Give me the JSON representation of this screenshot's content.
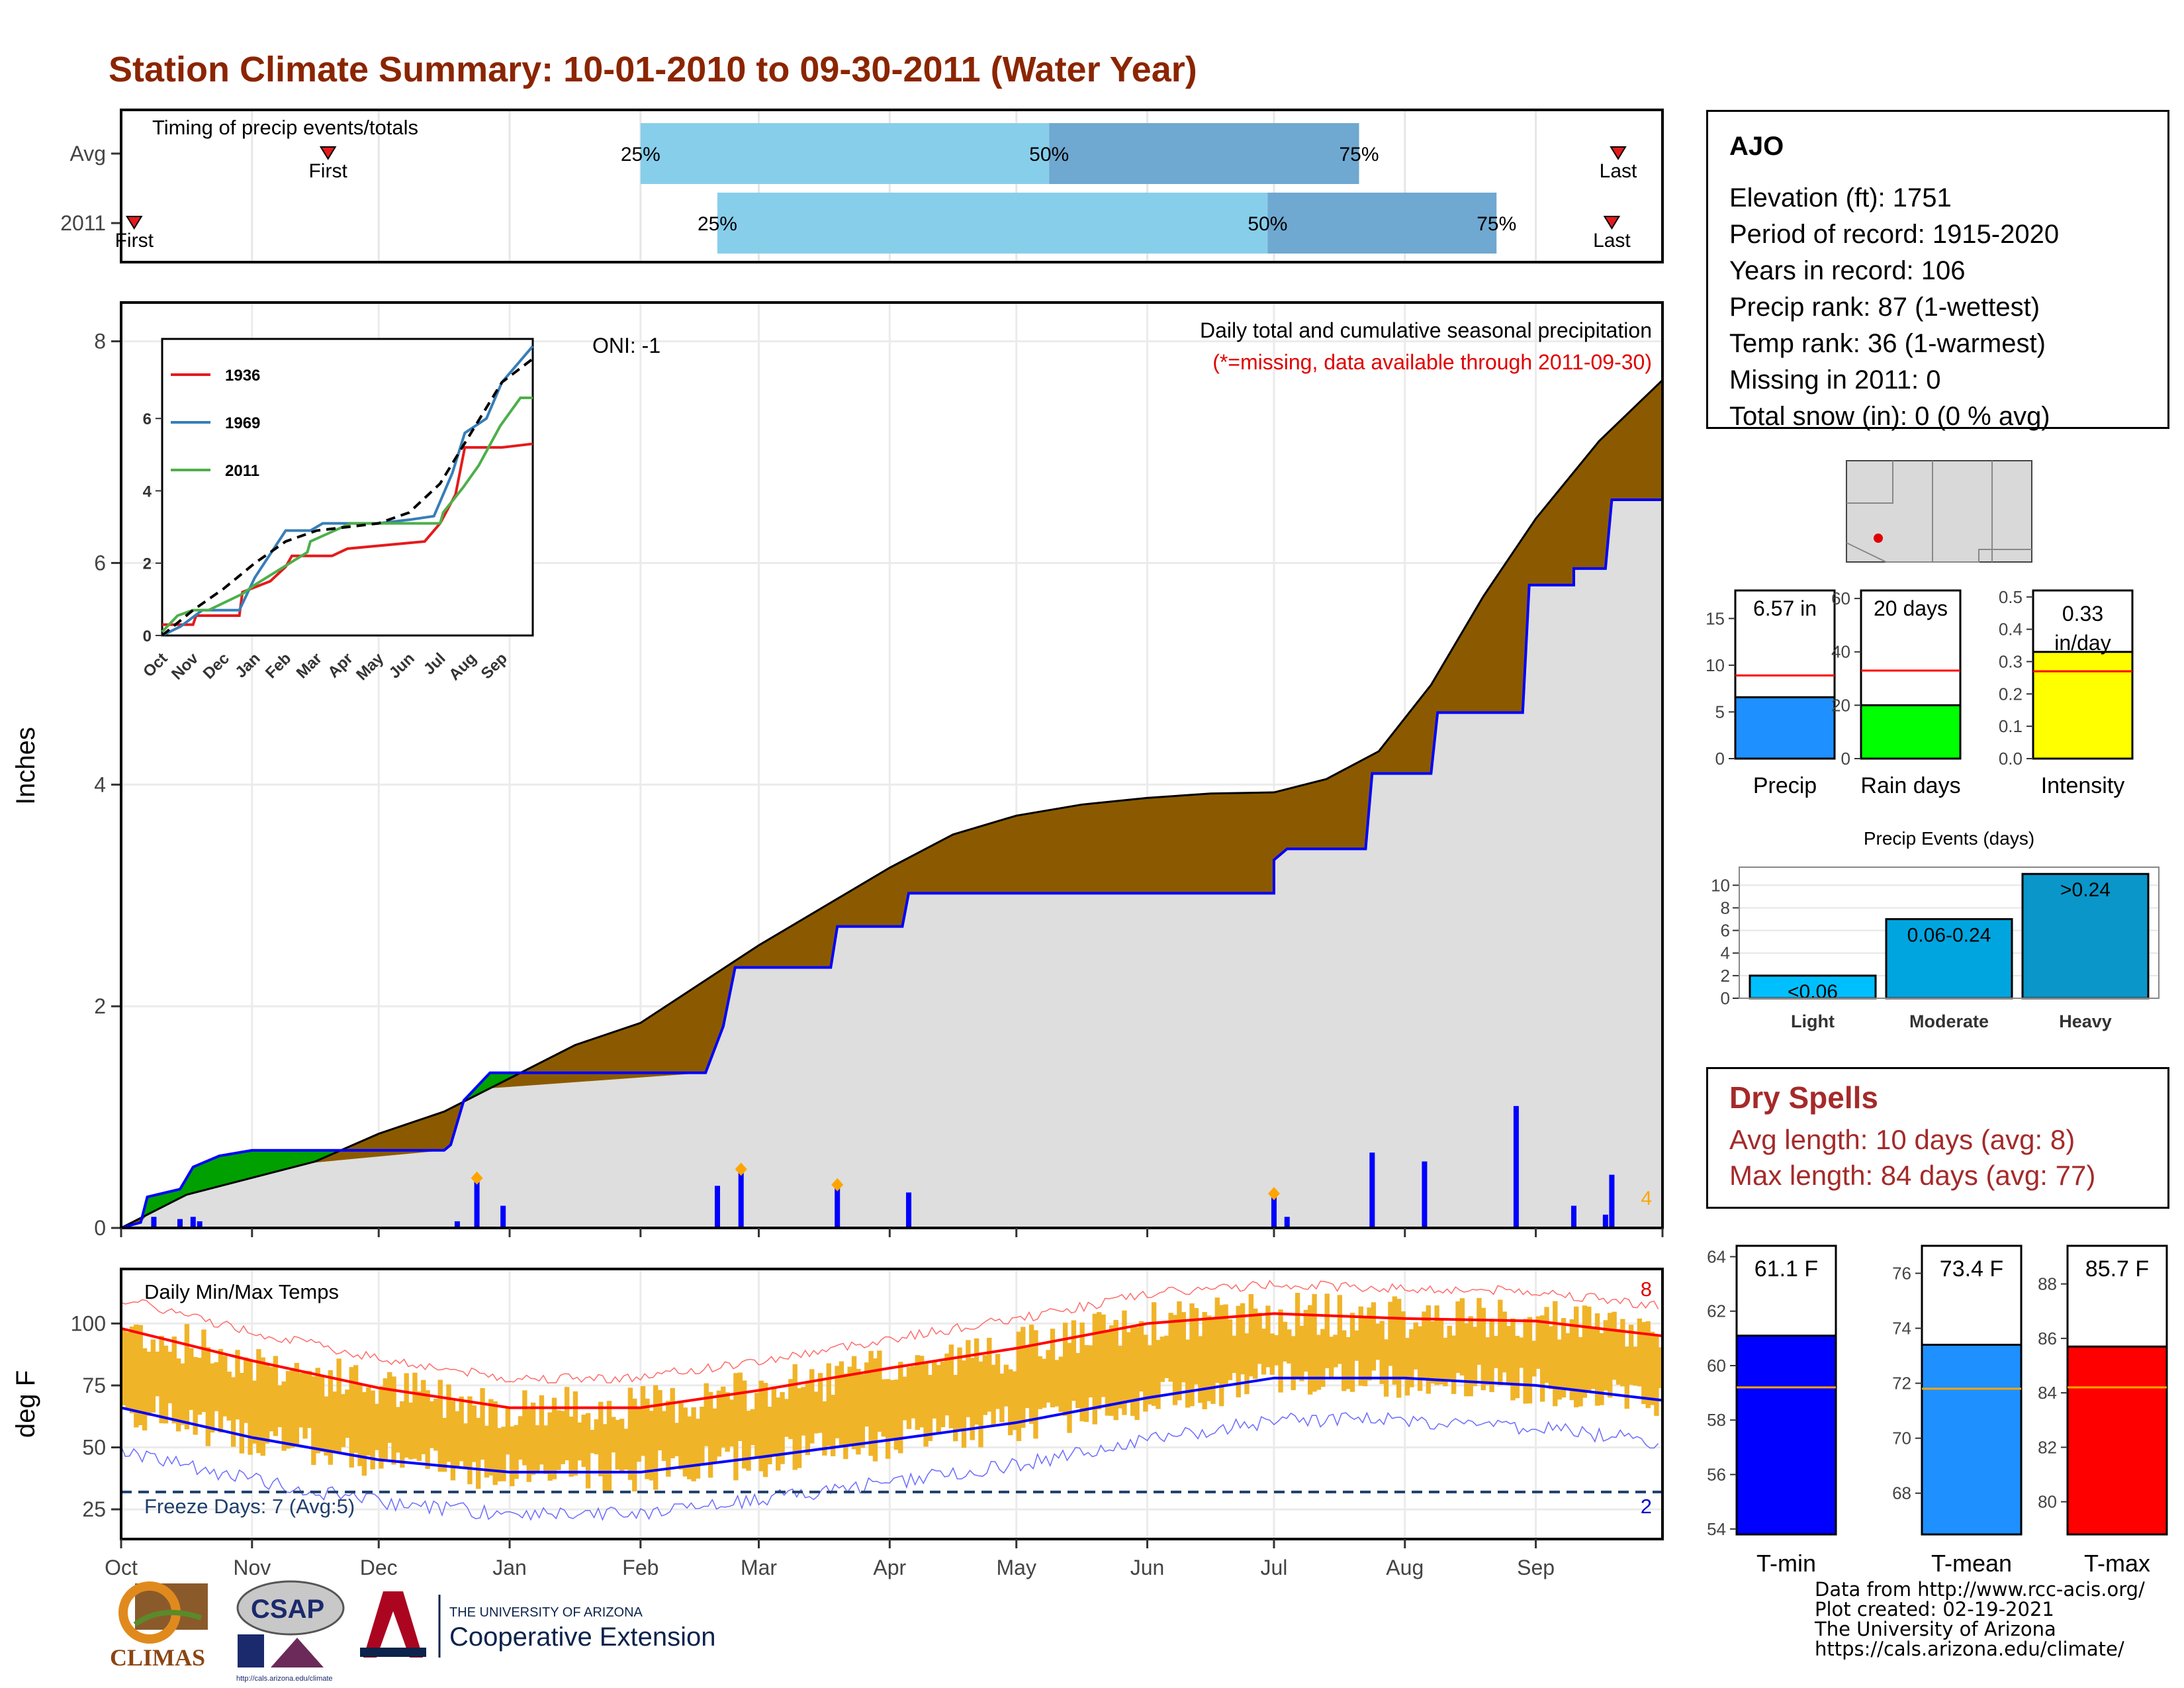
{
  "title": "Station Climate Summary: 10-01-2010 to 09-30-2011 (Water Year)",
  "timing": {
    "label": "Timing of precip events/totals",
    "rows": [
      {
        "label": "Avg",
        "first": "First",
        "last": "Last",
        "p25": "25%",
        "p50": "50%",
        "p75": "75%",
        "first_month": 1.6,
        "last_month": 11.65,
        "p25_month": 4.0,
        "p50_month": 7.25,
        "p75_month": 9.65
      },
      {
        "label": "2011",
        "first": "First",
        "last": "Last",
        "p25": "25%",
        "p50": "50%",
        "p75": "75%",
        "first_month": 0.1,
        "last_month": 11.6,
        "p25_month": 4.65,
        "p50_month": 8.95,
        "p75_month": 10.7
      }
    ]
  },
  "precip": {
    "ylabel": "Inches",
    "yticks": [
      "0",
      "2",
      "4",
      "6",
      "8"
    ],
    "oni": "ONI: -1",
    "caption": "Daily total and cumulative seasonal precipitation",
    "missing_note": "(*=missing, data available through 2011-09-30)",
    "count_label": "4",
    "avg_cumulative": [
      [
        0,
        0
      ],
      [
        0.5,
        0.3
      ],
      [
        1.5,
        0.6
      ],
      [
        2.0,
        0.85
      ],
      [
        2.5,
        1.05
      ],
      [
        3.0,
        1.35
      ],
      [
        3.5,
        1.65
      ],
      [
        4.0,
        1.85
      ],
      [
        4.5,
        2.2
      ],
      [
        5.0,
        2.55
      ],
      [
        5.5,
        2.9
      ],
      [
        6.0,
        3.25
      ],
      [
        6.5,
        3.55
      ],
      [
        7.0,
        3.72
      ],
      [
        7.5,
        3.82
      ],
      [
        8.0,
        3.88
      ],
      [
        8.5,
        3.92
      ],
      [
        9.0,
        3.93
      ],
      [
        9.4,
        4.05
      ],
      [
        9.8,
        4.3
      ],
      [
        10.2,
        4.9
      ],
      [
        10.6,
        5.7
      ],
      [
        11.0,
        6.4
      ],
      [
        11.5,
        7.1
      ],
      [
        12.0,
        7.65
      ]
    ],
    "year_cumulative": [
      [
        0,
        0
      ],
      [
        0.15,
        0.05
      ],
      [
        0.2,
        0.28
      ],
      [
        0.45,
        0.35
      ],
      [
        0.55,
        0.55
      ],
      [
        0.75,
        0.65
      ],
      [
        1.0,
        0.7
      ],
      [
        1.45,
        0.7
      ],
      [
        2.5,
        0.7
      ],
      [
        2.55,
        0.75
      ],
      [
        2.65,
        1.15
      ],
      [
        2.85,
        1.4
      ],
      [
        4.55,
        1.4
      ],
      [
        4.7,
        1.82
      ],
      [
        4.8,
        2.35
      ],
      [
        5.55,
        2.35
      ],
      [
        5.6,
        2.72
      ],
      [
        6.1,
        2.72
      ],
      [
        6.15,
        3.02
      ],
      [
        9.0,
        3.02
      ],
      [
        9.0,
        3.32
      ],
      [
        9.1,
        3.42
      ],
      [
        9.7,
        3.42
      ],
      [
        9.75,
        4.1
      ],
      [
        10.2,
        4.1
      ],
      [
        10.25,
        4.65
      ],
      [
        10.9,
        4.65
      ],
      [
        10.95,
        5.8
      ],
      [
        11.3,
        5.8
      ],
      [
        11.3,
        5.95
      ],
      [
        11.55,
        5.95
      ],
      [
        11.6,
        6.57
      ],
      [
        12.0,
        6.57
      ]
    ],
    "daily_bars": [
      [
        0.25,
        0.1
      ],
      [
        0.45,
        0.08
      ],
      [
        0.55,
        0.1
      ],
      [
        0.6,
        0.06
      ],
      [
        2.6,
        0.06
      ],
      [
        2.75,
        0.42
      ],
      [
        2.95,
        0.2
      ],
      [
        4.65,
        0.38
      ],
      [
        4.85,
        0.5
      ],
      [
        5.6,
        0.36
      ],
      [
        6.15,
        0.32
      ],
      [
        9.0,
        0.3
      ],
      [
        9.1,
        0.1
      ],
      [
        9.75,
        0.68
      ],
      [
        10.15,
        0.6
      ],
      [
        10.85,
        1.1
      ],
      [
        11.3,
        0.2
      ],
      [
        11.55,
        0.12
      ],
      [
        11.6,
        0.48
      ]
    ],
    "extreme_markers": [
      [
        2.75,
        0.45
      ],
      [
        4.85,
        0.53
      ],
      [
        5.6,
        0.39
      ],
      [
        9.0,
        0.31
      ]
    ]
  },
  "inset": {
    "legend": [
      "1936",
      "1969",
      "2011"
    ],
    "months": [
      "Oct",
      "Nov",
      "Dec",
      "Jan",
      "Feb",
      "Mar",
      "Apr",
      "May",
      "Jun",
      "Jul",
      "Aug",
      "Sep"
    ],
    "yticks": [
      "0",
      "2",
      "4",
      "6"
    ],
    "series_1936": [
      [
        0,
        0.3
      ],
      [
        1.0,
        0.3
      ],
      [
        1.1,
        0.55
      ],
      [
        2.5,
        0.55
      ],
      [
        2.6,
        1.2
      ],
      [
        3.5,
        1.5
      ],
      [
        4.0,
        1.9
      ],
      [
        4.2,
        2.2
      ],
      [
        5.5,
        2.2
      ],
      [
        6.0,
        2.4
      ],
      [
        8.5,
        2.6
      ],
      [
        9.0,
        3.1
      ],
      [
        9.5,
        3.9
      ],
      [
        9.8,
        5.2
      ],
      [
        11.0,
        5.2
      ],
      [
        12.0,
        5.3
      ]
    ],
    "series_1969": [
      [
        0,
        0.0
      ],
      [
        0.6,
        0.25
      ],
      [
        1.3,
        0.7
      ],
      [
        2.5,
        0.7
      ],
      [
        3.0,
        1.6
      ],
      [
        4.0,
        2.9
      ],
      [
        4.8,
        2.9
      ],
      [
        5.2,
        3.1
      ],
      [
        7.0,
        3.1
      ],
      [
        8.0,
        3.2
      ],
      [
        8.8,
        3.3
      ],
      [
        9.4,
        4.5
      ],
      [
        9.8,
        5.6
      ],
      [
        10.5,
        6.0
      ],
      [
        11.0,
        7.0
      ],
      [
        12.0,
        8.0
      ]
    ],
    "series_2011": [
      [
        0,
        0.1
      ],
      [
        0.5,
        0.55
      ],
      [
        1.0,
        0.7
      ],
      [
        1.5,
        0.7
      ],
      [
        2.6,
        1.15
      ],
      [
        3.0,
        1.4
      ],
      [
        4.7,
        2.3
      ],
      [
        4.8,
        2.6
      ],
      [
        6.1,
        3.1
      ],
      [
        9.0,
        3.1
      ],
      [
        9.1,
        3.4
      ],
      [
        9.75,
        4.1
      ],
      [
        10.25,
        4.7
      ],
      [
        10.95,
        5.8
      ],
      [
        11.6,
        6.57
      ],
      [
        12.0,
        6.57
      ]
    ],
    "series_avg": [
      [
        0,
        0
      ],
      [
        1.0,
        0.7
      ],
      [
        2.0,
        1.3
      ],
      [
        3.0,
        2.0
      ],
      [
        4.0,
        2.6
      ],
      [
        5.0,
        2.9
      ],
      [
        6.0,
        3.0
      ],
      [
        7.0,
        3.1
      ],
      [
        8.0,
        3.4
      ],
      [
        9.0,
        4.2
      ],
      [
        10.0,
        5.6
      ],
      [
        11.0,
        7.0
      ],
      [
        12.0,
        7.65
      ]
    ]
  },
  "temps": {
    "ylabel": "deg F",
    "label": "Daily Min/Max Temps",
    "freeze_label": "Freeze Days: 7 (Avg:5)",
    "yticks": [
      "25",
      "50",
      "75",
      "100"
    ],
    "hot_count": "8",
    "freeze_count": "2",
    "normal_max": [
      [
        0,
        98
      ],
      [
        1,
        85
      ],
      [
        2,
        74
      ],
      [
        3,
        66
      ],
      [
        4,
        66
      ],
      [
        5,
        73
      ],
      [
        6,
        82
      ],
      [
        7,
        90
      ],
      [
        8,
        100
      ],
      [
        9,
        104
      ],
      [
        10,
        102
      ],
      [
        11,
        101
      ],
      [
        12,
        95
      ]
    ],
    "normal_min": [
      [
        0,
        66
      ],
      [
        1,
        54
      ],
      [
        2,
        45
      ],
      [
        3,
        40
      ],
      [
        4,
        40
      ],
      [
        5,
        46
      ],
      [
        6,
        53
      ],
      [
        7,
        60
      ],
      [
        8,
        70
      ],
      [
        9,
        78
      ],
      [
        10,
        78
      ],
      [
        11,
        75
      ],
      [
        12,
        69
      ]
    ]
  },
  "months": [
    "Oct",
    "Nov",
    "Dec",
    "Jan",
    "Feb",
    "Mar",
    "Apr",
    "May",
    "Jun",
    "Jul",
    "Aug",
    "Sep"
  ],
  "station": {
    "name": "AJO",
    "elevation": "Elevation (ft): 1751",
    "period": "Period of record: 1915-2020",
    "years": "Years in record: 106",
    "precip_rank": "Precip rank: 87 (1-wettest)",
    "temp_rank": "Temp rank: 36 (1-warmest)",
    "missing": "Missing in 2011: 0",
    "snow": "Total snow (in): 0 (0 % avg)"
  },
  "precip_bars": [
    {
      "value_label": "6.57 in",
      "label": "Precip",
      "value": 6.57,
      "avg": 8.9,
      "ymax": 18,
      "yticks": [
        "0",
        "5",
        "10",
        "15"
      ],
      "tickvals": [
        0,
        5,
        10,
        15
      ],
      "color": "#1e90ff"
    },
    {
      "value_label": "20 days",
      "label": "Rain days",
      "value": 20,
      "avg": 33,
      "ymax": 63,
      "yticks": [
        "0",
        "20",
        "40",
        "60"
      ],
      "tickvals": [
        0,
        20,
        40,
        60
      ],
      "color": "#00ff00"
    },
    {
      "value_label": "0.33 in/day",
      "label": "Intensity",
      "value": 0.33,
      "avg": 0.27,
      "ymax": 0.52,
      "yticks": [
        "0.0",
        "0.1",
        "0.2",
        "0.3",
        "0.4",
        "0.5"
      ],
      "tickvals": [
        0,
        0.1,
        0.2,
        0.3,
        0.4,
        0.5
      ],
      "color": "#ffff00"
    }
  ],
  "events": {
    "title": "Precip Events (days)",
    "categories": [
      "Light",
      "Moderate",
      "Heavy"
    ],
    "bar_labels": [
      "<0.06",
      "0.06-0.24",
      ">0.24"
    ],
    "values": [
      2,
      7,
      11
    ],
    "yticks": [
      "0",
      "2",
      "4",
      "6",
      "8",
      "10"
    ],
    "colors": [
      "#00bfff",
      "#00a5e0",
      "#0a96c8"
    ]
  },
  "dry": {
    "title": "Dry Spells",
    "avg_length": "Avg length: 10 days (avg: 8)",
    "max_length": "Max length: 84 days (avg: 77)"
  },
  "temp_bars": [
    {
      "value_label": "61.1 F",
      "label": "T-min",
      "value": 61.1,
      "avg": 59.2,
      "ymin": 53.8,
      "ymax": 64.4,
      "yticks": [
        "54",
        "56",
        "58",
        "60",
        "62",
        "64"
      ],
      "tickvals": [
        54,
        56,
        58,
        60,
        62,
        64
      ],
      "color": "#0000ff"
    },
    {
      "value_label": "73.4 F",
      "label": "T-mean",
      "value": 73.4,
      "avg": 71.8,
      "ymin": 66.5,
      "ymax": 77.0,
      "yticks": [
        "68",
        "70",
        "72",
        "74",
        "76"
      ],
      "tickvals": [
        68,
        70,
        72,
        74,
        76
      ],
      "color": "#1e90ff"
    },
    {
      "value_label": "85.7 F",
      "label": "T-max",
      "value": 85.7,
      "avg": 84.2,
      "ymin": 78.8,
      "ymax": 89.4,
      "yticks": [
        "80",
        "82",
        "84",
        "86",
        "88"
      ],
      "tickvals": [
        80,
        82,
        84,
        86,
        88
      ],
      "color": "#ff0000"
    }
  ],
  "credits": [
    "Data from http://www.rcc-acis.org/",
    "Plot created: 02-19-2021",
    "The University of Arizona",
    "https://cals.arizona.edu/climate/"
  ],
  "logos": {
    "climas": "CLIMAS",
    "csap": "CSAP",
    "csap_url": "http://cals.arizona.edu/climate",
    "ua_line1": "THE UNIVERSITY OF ARIZONA",
    "ua_line2": "Cooperative Extension"
  },
  "chart_data": [
    {
      "type": "bar",
      "title": "Timing of precip events/totals",
      "categories": [
        "Avg",
        "2011"
      ],
      "series": []
    },
    {
      "type": "area",
      "title": "Daily total and cumulative seasonal precipitation",
      "xlabel": "",
      "ylabel": "Inches",
      "ylim": [
        0,
        8.3
      ],
      "x": [
        "Oct",
        "Nov",
        "Dec",
        "Jan",
        "Feb",
        "Mar",
        "Apr",
        "May",
        "Jun",
        "Jul",
        "Aug",
        "Sep"
      ]
    },
    {
      "type": "line",
      "title": "Daily Min/Max Temps",
      "xlabel": "",
      "ylabel": "deg F",
      "ylim": [
        13,
        122
      ]
    },
    {
      "type": "bar",
      "categories": [
        "Precip",
        "Rain days",
        "Intensity"
      ],
      "values": [
        6.57,
        20,
        0.33
      ]
    },
    {
      "type": "bar",
      "title": "Precip Events (days)",
      "categories": [
        "Light",
        "Moderate",
        "Heavy"
      ],
      "values": [
        2,
        7,
        11
      ]
    },
    {
      "type": "bar",
      "categories": [
        "T-min",
        "T-mean",
        "T-max"
      ],
      "values": [
        61.1,
        73.4,
        85.7
      ]
    }
  ]
}
